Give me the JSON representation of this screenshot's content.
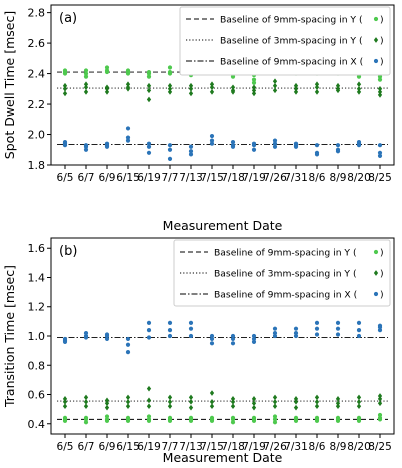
{
  "chart_data": [
    {
      "type": "scatter",
      "panel_label": "(a)",
      "xlabel": "Measurement Date",
      "ylabel": "Spot Dwell Time [msec]",
      "categories": [
        "6/5",
        "6/7",
        "6/9",
        "6/15",
        "6/19",
        "7/7",
        "7/13",
        "7/15",
        "7/18",
        "7/19",
        "7/26",
        "7/31",
        "8/6",
        "8/9",
        "8/20",
        "8/25"
      ],
      "ylim": [
        1.8,
        2.85
      ],
      "yticks": [
        "1.8",
        "2.0",
        "2.2",
        "2.4",
        "2.6",
        "2.8"
      ],
      "legend_position": "top-right",
      "baselines": [
        {
          "label": "Baseline of 9mm-spacing in Y (",
          "style": "dashed",
          "value": 2.41,
          "marker": "circle",
          "marker_color": "#4ec94e"
        },
        {
          "label": "Baseline of 3mm-spacing in Y (",
          "style": "dotted",
          "value": 2.305,
          "marker": "diamond",
          "marker_color": "#1f7a1f"
        },
        {
          "label": "Baseline of 9mm-spacing in X (",
          "style": "dashdot",
          "value": 1.935,
          "marker": "circle",
          "marker_color": "#2b74b8"
        }
      ],
      "series": [
        {
          "marker": "circle",
          "color": "#4ec94e",
          "values": [
            [
              2.41,
              2.42,
              2.4
            ],
            [
              2.4,
              2.38,
              2.42
            ],
            [
              2.42,
              2.44,
              2.41
            ],
            [
              2.42,
              2.41,
              2.4
            ],
            [
              2.4,
              2.38,
              2.41
            ],
            [
              2.41,
              2.44,
              2.4
            ],
            [
              2.41,
              2.4,
              2.39
            ],
            [
              2.42,
              2.44,
              2.41
            ],
            [
              2.4,
              2.42,
              2.38
            ],
            [
              2.36,
              2.34,
              2.39
            ],
            [
              2.44,
              2.46,
              2.41
            ],
            [
              2.47,
              2.42,
              2.4
            ],
            [
              2.42,
              2.41,
              2.4
            ],
            [
              2.41,
              2.44,
              2.4
            ],
            [
              2.42,
              2.4,
              2.38
            ],
            [
              2.38,
              2.36,
              2.4
            ]
          ]
        },
        {
          "marker": "diamond",
          "color": "#1f7a1f",
          "values": [
            [
              2.27,
              2.3,
              2.32
            ],
            [
              2.28,
              2.31,
              2.33
            ],
            [
              2.3,
              2.31,
              2.28
            ],
            [
              2.31,
              2.33,
              2.3
            ],
            [
              2.23,
              2.29,
              2.32
            ],
            [
              2.28,
              2.3,
              2.32
            ],
            [
              2.27,
              2.3,
              2.32
            ],
            [
              2.28,
              2.31,
              2.33
            ],
            [
              2.29,
              2.31,
              2.28
            ],
            [
              2.29,
              2.31,
              2.27
            ],
            [
              2.32,
              2.29,
              2.35
            ],
            [
              2.3,
              2.32,
              2.28
            ],
            [
              2.28,
              2.33,
              2.31
            ],
            [
              2.3,
              2.29,
              2.32
            ],
            [
              2.28,
              2.3,
              2.33
            ],
            [
              2.26,
              2.28,
              2.3
            ]
          ]
        },
        {
          "marker": "circle",
          "color": "#2b74b8",
          "values": [
            [
              1.93,
              1.95,
              1.94
            ],
            [
              1.9,
              1.92,
              1.93
            ],
            [
              1.94,
              1.93,
              1.92
            ],
            [
              2.04,
              1.98,
              1.96
            ],
            [
              1.88,
              1.92,
              1.94
            ],
            [
              1.84,
              1.9,
              1.93
            ],
            [
              1.87,
              1.89,
              1.92
            ],
            [
              1.99,
              1.96,
              1.94
            ],
            [
              1.93,
              1.95,
              1.92
            ],
            [
              1.9,
              1.93,
              1.94
            ],
            [
              1.92,
              1.96,
              1.94
            ],
            [
              1.92,
              1.94,
              1.93
            ],
            [
              1.87,
              1.88,
              1.93
            ],
            [
              1.9,
              1.89,
              1.93
            ],
            [
              1.93,
              1.95,
              1.94
            ],
            [
              1.86,
              1.88,
              1.93
            ]
          ]
        }
      ]
    },
    {
      "type": "scatter",
      "panel_label": "(b)",
      "xlabel": "Measurement Date",
      "ylabel": "Transition Time [msec]",
      "categories": [
        "6/5",
        "6/7",
        "6/9",
        "6/15",
        "6/19",
        "7/7",
        "7/13",
        "7/15",
        "7/18",
        "7/19",
        "7/26",
        "7/31",
        "8/6",
        "8/9",
        "8/20",
        "8/25"
      ],
      "ylim": [
        0.33,
        1.67
      ],
      "yticks": [
        "0.4",
        "0.6",
        "0.8",
        "1.0",
        "1.2",
        "1.4",
        "1.6"
      ],
      "legend_position": "top-right",
      "baselines": [
        {
          "label": "Baseline of 9mm-spacing in Y (",
          "style": "dashed",
          "value": 0.43,
          "marker": "circle",
          "marker_color": "#4ec94e"
        },
        {
          "label": "Baseline of 3mm-spacing in Y (",
          "style": "dotted",
          "value": 0.555,
          "marker": "diamond",
          "marker_color": "#1f7a1f"
        },
        {
          "label": "Baseline of 9mm-spacing in X (",
          "style": "dashdot",
          "value": 0.99,
          "marker": "circle",
          "marker_color": "#2b74b8"
        }
      ],
      "series": [
        {
          "marker": "circle",
          "color": "#4ec94e",
          "values": [
            [
              0.42,
              0.43,
              0.44
            ],
            [
              0.41,
              0.43,
              0.44
            ],
            [
              0.42,
              0.43,
              0.45
            ],
            [
              0.42,
              0.44,
              0.43
            ],
            [
              0.42,
              0.43,
              0.45
            ],
            [
              0.43,
              0.44,
              0.42
            ],
            [
              0.42,
              0.43,
              0.44
            ],
            [
              0.42,
              0.43,
              0.44
            ],
            [
              0.41,
              0.43,
              0.44
            ],
            [
              0.42,
              0.43,
              0.44
            ],
            [
              0.41,
              0.43,
              0.45
            ],
            [
              0.42,
              0.43,
              0.44
            ],
            [
              0.42,
              0.43,
              0.44
            ],
            [
              0.42,
              0.43,
              0.44
            ],
            [
              0.42,
              0.43,
              0.44
            ],
            [
              0.44,
              0.46,
              0.43
            ]
          ]
        },
        {
          "marker": "diamond",
          "color": "#1f7a1f",
          "values": [
            [
              0.52,
              0.55,
              0.57
            ],
            [
              0.52,
              0.55,
              0.58
            ],
            [
              0.51,
              0.54,
              0.56
            ],
            [
              0.52,
              0.55,
              0.58
            ],
            [
              0.52,
              0.56,
              0.64
            ],
            [
              0.52,
              0.55,
              0.58
            ],
            [
              0.51,
              0.55,
              0.58
            ],
            [
              0.52,
              0.55,
              0.61
            ],
            [
              0.52,
              0.55,
              0.57
            ],
            [
              0.51,
              0.54,
              0.57
            ],
            [
              0.52,
              0.55,
              0.58
            ],
            [
              0.51,
              0.55,
              0.57
            ],
            [
              0.52,
              0.55,
              0.58
            ],
            [
              0.52,
              0.54,
              0.57
            ],
            [
              0.52,
              0.55,
              0.58
            ],
            [
              0.54,
              0.57,
              0.59
            ]
          ]
        },
        {
          "marker": "circle",
          "color": "#2b74b8",
          "values": [
            [
              0.96,
              0.98,
              0.97
            ],
            [
              1.0,
              1.02,
              0.99
            ],
            [
              1.01,
              0.98,
              1.0
            ],
            [
              0.89,
              0.94,
              0.98
            ],
            [
              1.09,
              1.04,
              0.99
            ],
            [
              1.09,
              1.04,
              1.0
            ],
            [
              1.09,
              1.05,
              1.0
            ],
            [
              0.95,
              0.98,
              1.0
            ],
            [
              0.95,
              0.98,
              1.0
            ],
            [
              0.96,
              0.98,
              1.0
            ],
            [
              1.05,
              1.02,
              1.0
            ],
            [
              1.05,
              1.02,
              1.0
            ],
            [
              1.09,
              1.05,
              1.01
            ],
            [
              1.09,
              1.05,
              1.01
            ],
            [
              1.09,
              1.04,
              1.0
            ],
            [
              1.07,
              1.04,
              1.06
            ]
          ]
        }
      ]
    }
  ]
}
